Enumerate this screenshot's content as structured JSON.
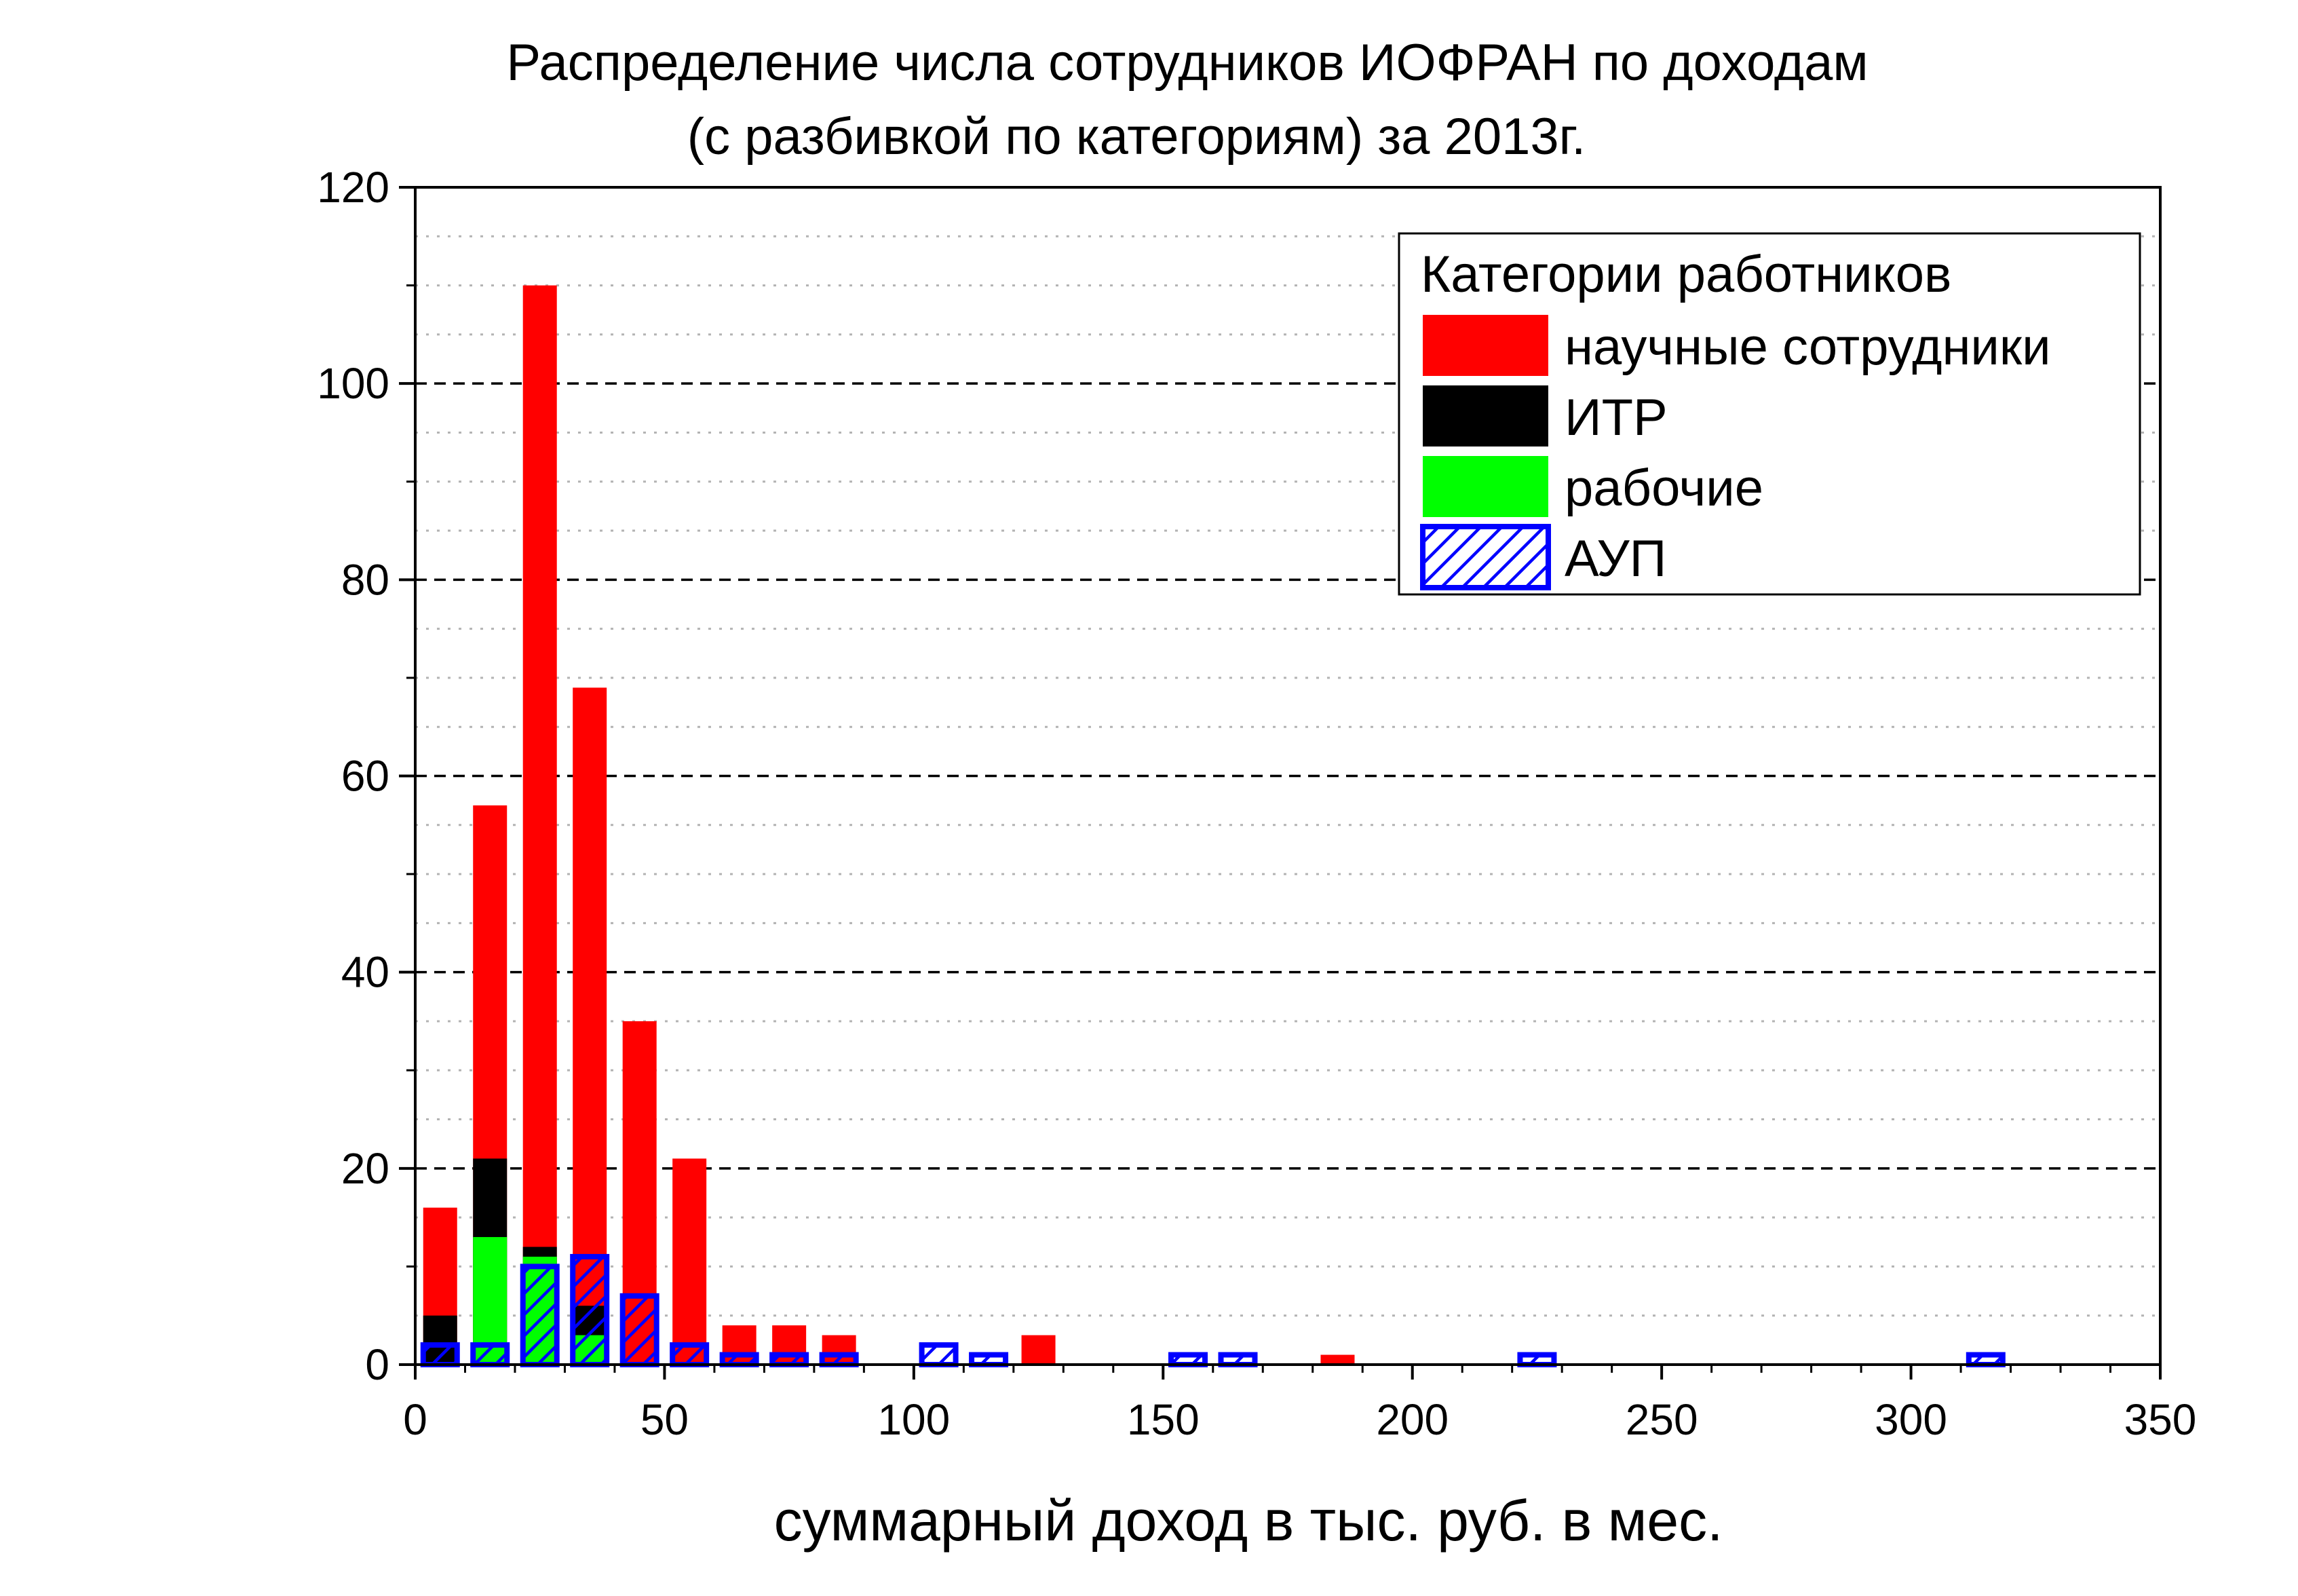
{
  "chart_data": {
    "type": "bar",
    "title_line1": "Распределение числа сотрудников ИОФРАН по доходам",
    "title_line2": "(с разбивкой по категориям) за 2013г.",
    "xlabel": "суммарный доход в тыс. руб. в мес.",
    "ylabel": "",
    "xlim": [
      0,
      350
    ],
    "ylim": [
      0,
      120
    ],
    "x_ticks": [
      0,
      50,
      100,
      150,
      200,
      250,
      300,
      350
    ],
    "y_ticks": [
      0,
      20,
      40,
      60,
      80,
      100,
      120
    ],
    "grid": true,
    "legend": {
      "title": "Категории работников",
      "position": "top-right",
      "entries": [
        {
          "label": "научные сотрудники",
          "color": "#ff0000",
          "pattern": "solid"
        },
        {
          "label": "ИТР",
          "color": "#000000",
          "pattern": "solid"
        },
        {
          "label": "рабочие",
          "color": "#00ff00",
          "pattern": "solid"
        },
        {
          "label": "АУП",
          "color": "#0000ff",
          "pattern": "hatched"
        }
      ]
    },
    "series": [
      {
        "name": "научные сотрудники",
        "color": "#ff0000",
        "x": [
          5,
          15,
          25,
          35,
          45,
          55,
          65,
          75,
          85,
          125,
          185
        ],
        "values": [
          16,
          57,
          110,
          69,
          35,
          21,
          4,
          4,
          3,
          3,
          1
        ]
      },
      {
        "name": "ИТР",
        "color": "#000000",
        "x": [
          5,
          15,
          25,
          35
        ],
        "values": [
          5,
          21,
          12,
          6
        ]
      },
      {
        "name": "рабочие",
        "color": "#00ff00",
        "x": [
          15,
          25,
          35
        ],
        "values": [
          13,
          11,
          3
        ]
      },
      {
        "name": "АУП",
        "color": "#0000ff",
        "x": [
          5,
          15,
          25,
          35,
          45,
          55,
          65,
          75,
          85,
          105,
          115,
          155,
          165,
          225,
          315
        ],
        "values": [
          2,
          2,
          10,
          11,
          7,
          2,
          1,
          1,
          1,
          2,
          1,
          1,
          1,
          1,
          1
        ]
      }
    ]
  }
}
